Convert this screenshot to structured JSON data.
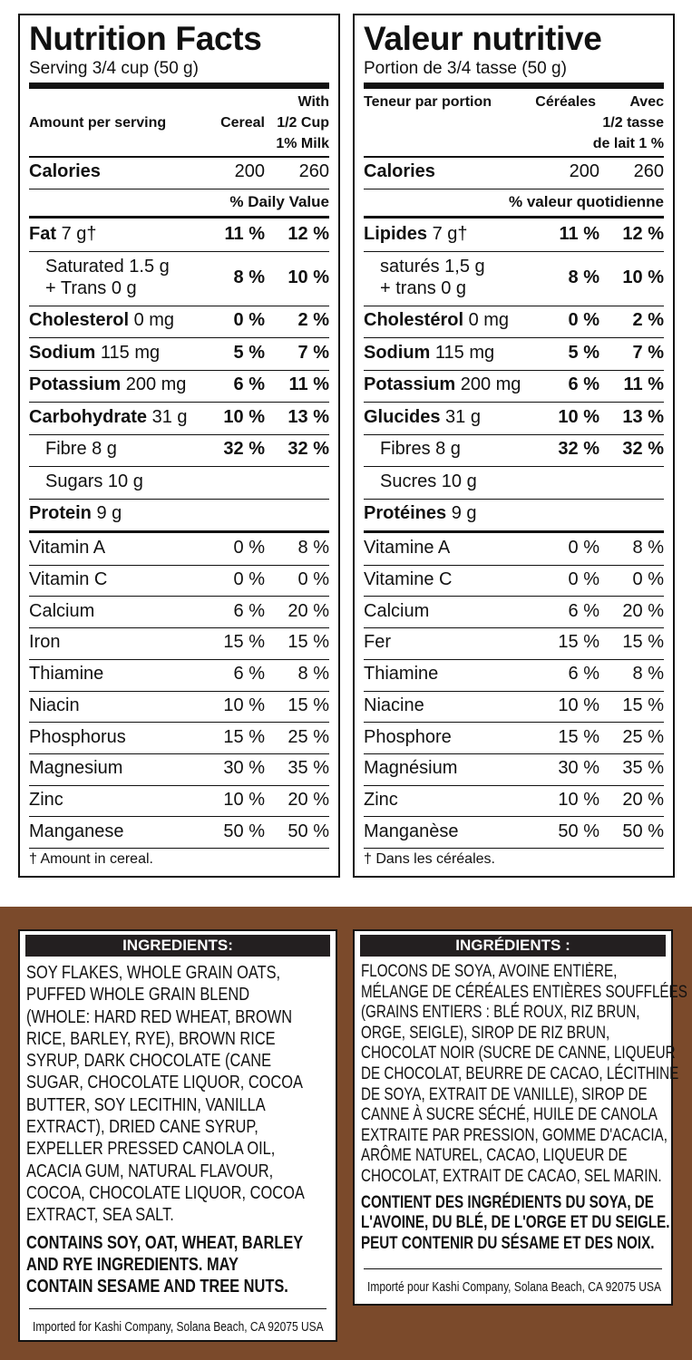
{
  "english": {
    "title": "Nutrition Facts",
    "serving": "Serving 3/4 cup (50 g)",
    "header": {
      "amount": "Amount per serving",
      "col1": "Cereal",
      "col2": [
        "With",
        "1/2 Cup",
        "1% Milk"
      ]
    },
    "calories": {
      "label": "Calories",
      "values": [
        "200",
        "260"
      ]
    },
    "dv": "% Daily Value",
    "nutrients": [
      {
        "name": "Fat",
        "amount": "7 g†",
        "values": [
          "11 %",
          "12 %"
        ],
        "sub": [
          {
            "name": [
              "Saturated 1.5 g",
              "+ Trans 0 g"
            ],
            "values": [
              "8 %",
              "10 %"
            ]
          }
        ]
      },
      {
        "name": "Cholesterol",
        "amount": "0 mg",
        "values": [
          "0 %",
          "2 %"
        ],
        "sub": []
      },
      {
        "name": "Sodium",
        "amount": "115 mg",
        "values": [
          "5 %",
          "7 %"
        ],
        "sub": []
      },
      {
        "name": "Potassium",
        "amount": "200 mg",
        "values": [
          "6 %",
          "11 %"
        ],
        "sub": []
      },
      {
        "name": "Carbohydrate",
        "amount": "31 g",
        "values": [
          "10 %",
          "13 %"
        ],
        "sub": [
          {
            "name": [
              "Fibre 8 g"
            ],
            "values": [
              "32 %",
              "32 %"
            ]
          },
          {
            "name": [
              "Sugars 10 g"
            ],
            "values": []
          }
        ]
      },
      {
        "name": "Protein",
        "amount": "9 g",
        "values": [],
        "sub": []
      }
    ],
    "vitamins": [
      {
        "name": "Vitamin A",
        "values": [
          "0 %",
          "8 %"
        ]
      },
      {
        "name": "Vitamin C",
        "values": [
          "0 %",
          "0 %"
        ]
      },
      {
        "name": "Calcium",
        "values": [
          "6 %",
          "20 %"
        ]
      },
      {
        "name": "Iron",
        "values": [
          "15 %",
          "15 %"
        ]
      },
      {
        "name": "Thiamine",
        "values": [
          "6 %",
          "8 %"
        ]
      },
      {
        "name": "Niacin",
        "values": [
          "10 %",
          "15 %"
        ]
      },
      {
        "name": "Phosphorus",
        "values": [
          "15 %",
          "25 %"
        ]
      },
      {
        "name": "Magnesium",
        "values": [
          "30 %",
          "35 %"
        ]
      },
      {
        "name": "Zinc",
        "values": [
          "10 %",
          "20 %"
        ]
      },
      {
        "name": "Manganese",
        "values": [
          "50 %",
          "50 %"
        ]
      }
    ],
    "footnote": "† Amount in cereal."
  },
  "french": {
    "title": "Valeur nutritive",
    "serving": "Portion de 3/4 tasse (50 g)",
    "header": {
      "amount": "Teneur par portion",
      "col1": "Céréales",
      "col2": [
        "Avec",
        "1/2 tasse",
        "de lait 1 %"
      ]
    },
    "calories": {
      "label": "Calories",
      "values": [
        "200",
        "260"
      ]
    },
    "dv": "% valeur quotidienne",
    "nutrients": [
      {
        "name": "Lipides",
        "amount": "7 g†",
        "values": [
          "11 %",
          "12 %"
        ],
        "sub": [
          {
            "name": [
              "saturés 1,5 g",
              "+ trans 0 g"
            ],
            "values": [
              "8 %",
              "10 %"
            ]
          }
        ]
      },
      {
        "name": "Cholestérol",
        "amount": "0 mg",
        "values": [
          "0 %",
          "2 %"
        ],
        "sub": []
      },
      {
        "name": "Sodium",
        "amount": "115 mg",
        "values": [
          "5 %",
          "7 %"
        ],
        "sub": []
      },
      {
        "name": "Potassium",
        "amount": "200 mg",
        "values": [
          "6 %",
          "11 %"
        ],
        "sub": []
      },
      {
        "name": "Glucides",
        "amount": "31 g",
        "values": [
          "10 %",
          "13 %"
        ],
        "sub": [
          {
            "name": [
              "Fibres 8 g"
            ],
            "values": [
              "32 %",
              "32 %"
            ]
          },
          {
            "name": [
              "Sucres 10 g"
            ],
            "values": []
          }
        ]
      },
      {
        "name": "Protéines",
        "amount": "9 g",
        "values": [],
        "sub": []
      }
    ],
    "vitamins": [
      {
        "name": "Vitamine A",
        "values": [
          "0 %",
          "8 %"
        ]
      },
      {
        "name": "Vitamine C",
        "values": [
          "0 %",
          "0 %"
        ]
      },
      {
        "name": "Calcium",
        "values": [
          "6 %",
          "20 %"
        ]
      },
      {
        "name": "Fer",
        "values": [
          "15 %",
          "15 %"
        ]
      },
      {
        "name": "Thiamine",
        "values": [
          "6 %",
          "8 %"
        ]
      },
      {
        "name": "Niacine",
        "values": [
          "10 %",
          "15 %"
        ]
      },
      {
        "name": "Phosphore",
        "values": [
          "15 %",
          "25 %"
        ]
      },
      {
        "name": "Magnésium",
        "values": [
          "30 %",
          "35 %"
        ]
      },
      {
        "name": "Zinc",
        "values": [
          "10 %",
          "20 %"
        ]
      },
      {
        "name": "Manganèse",
        "values": [
          "50 %",
          "50 %"
        ]
      }
    ],
    "footnote": "† Dans les céréales."
  },
  "ingredients_en": {
    "heading": "INGREDIENTS:",
    "lines": [
      "SOY FLAKES, WHOLE GRAIN OATS,",
      "PUFFED WHOLE GRAIN BLEND",
      "(WHOLE: HARD RED WHEAT, BROWN",
      "RICE, BARLEY, RYE), BROWN RICE",
      "SYRUP, DARK CHOCOLATE (CANE",
      "SUGAR, CHOCOLATE LIQUOR, COCOA",
      "BUTTER, SOY LECITHIN, VANILLA",
      "EXTRACT), DRIED CANE SYRUP,",
      "EXPELLER PRESSED CANOLA OIL,",
      "ACACIA GUM, NATURAL FLAVOUR,",
      "COCOA, CHOCOLATE LIQUOR, COCOA",
      "EXTRACT, SEA SALT."
    ],
    "allergens": [
      "CONTAINS SOY, OAT, WHEAT, BARLEY",
      "AND RYE INGREDIENTS. MAY",
      "CONTAIN SESAME AND TREE NUTS."
    ],
    "importer": "Imported for Kashi Company, Solana Beach, CA 92075  USA"
  },
  "ingredients_fr": {
    "heading": "INGRÉDIENTS :",
    "lines": [
      "FLOCONS DE SOYA, AVOINE ENTIÈRE,",
      "MÉLANGE DE CÉRÉALES ENTIÈRES SOUFFLÉES",
      "(GRAINS ENTIERS : BLÉ ROUX, RIZ BRUN,",
      "ORGE, SEIGLE), SIROP DE RIZ BRUN,",
      "CHOCOLAT NOIR (SUCRE DE CANNE, LIQUEUR",
      "DE CHOCOLAT, BEURRE DE CACAO, LÉCITHINE",
      "DE SOYA, EXTRAIT DE VANILLE), SIROP DE",
      "CANNE À SUCRE SÉCHÉ, HUILE DE CANOLA",
      "EXTRAITE PAR PRESSION, GOMME D'ACACIA,",
      "ARÔME NATUREL, CACAO, LIQUEUR DE",
      "CHOCOLAT, EXTRAIT DE CACAO, SEL MARIN."
    ],
    "allergens": [
      "CONTIENT DES INGRÉDIENTS DU SOYA, DE",
      "L'AVOINE, DU BLÉ, DE L'ORGE ET DU SEIGLE.",
      "PEUT CONTENIR DU SÉSAME ET DES NOIX."
    ],
    "importer": "Importé pour Kashi Company, Solana Beach, CA 92075  USA"
  }
}
